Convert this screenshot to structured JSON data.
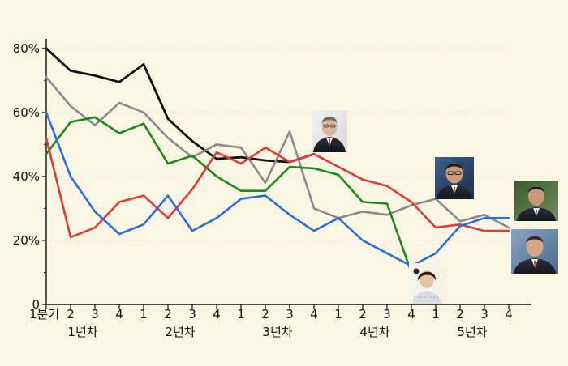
{
  "chart_data": {
    "type": "line",
    "title": "",
    "xlabel": "",
    "ylabel": "",
    "ylim": [
      0,
      85
    ],
    "y_ticks": [
      {
        "value": 0,
        "label": "0"
      },
      {
        "value": 20,
        "label": "20%"
      },
      {
        "value": 40,
        "label": "40%"
      },
      {
        "value": 60,
        "label": "60%"
      },
      {
        "value": 80,
        "label": "80%"
      }
    ],
    "categories": [
      "1분기",
      "2",
      "3",
      "4",
      "1",
      "2",
      "3",
      "4",
      "1",
      "2",
      "3",
      "4",
      "1",
      "2",
      "3",
      "4",
      "1",
      "2",
      "3",
      "4"
    ],
    "year_labels": [
      {
        "label": "1년차",
        "center_index": 1.5
      },
      {
        "label": "2년차",
        "center_index": 5.5
      },
      {
        "label": "3년차",
        "center_index": 9.5
      },
      {
        "label": "4년차",
        "center_index": 13.5
      },
      {
        "label": "5년차",
        "center_index": 17.5
      }
    ],
    "series": [
      {
        "name": "black",
        "color": "#111111",
        "width": 2.8,
        "portrait": "moon-jae-in",
        "values": [
          80,
          73,
          71.5,
          69.5,
          75,
          58,
          51,
          45.5,
          46,
          45,
          44.5,
          47,
          null,
          null,
          null,
          null,
          null,
          null,
          null,
          null
        ]
      },
      {
        "name": "gray",
        "color": "#8a8a8a",
        "width": 2.6,
        "portrait": "kim-dae-jung",
        "values": [
          71,
          62,
          56,
          63,
          60,
          52,
          46,
          50,
          49,
          38,
          54,
          30,
          27,
          29,
          28,
          31,
          33,
          26,
          28,
          24
        ]
      },
      {
        "name": "green",
        "color": "#1a8a1a",
        "width": 2.6,
        "portrait": "park-geun-hye",
        "values": [
          47,
          57,
          58.5,
          53.5,
          56.5,
          44,
          46.5,
          40,
          35.5,
          35.5,
          43,
          42.5,
          40.5,
          32,
          31.5,
          10,
          null,
          null,
          null,
          null
        ]
      },
      {
        "name": "red",
        "color": "#e03a3a",
        "width": 2.6,
        "portrait": "lee-myung-bak",
        "values": [
          52,
          21,
          24,
          32,
          34,
          27,
          36,
          47.5,
          44,
          49,
          44.5,
          47,
          43,
          39,
          37,
          32,
          24,
          25,
          23,
          23
        ]
      },
      {
        "name": "blue",
        "color": "#2a6fd6",
        "width": 2.6,
        "portrait": "roh-moo-hyun",
        "values": [
          60,
          40,
          29,
          22,
          25,
          34,
          23,
          27,
          33,
          34,
          28,
          23,
          27,
          20,
          16,
          12,
          16,
          24.5,
          27,
          27
        ]
      }
    ]
  }
}
